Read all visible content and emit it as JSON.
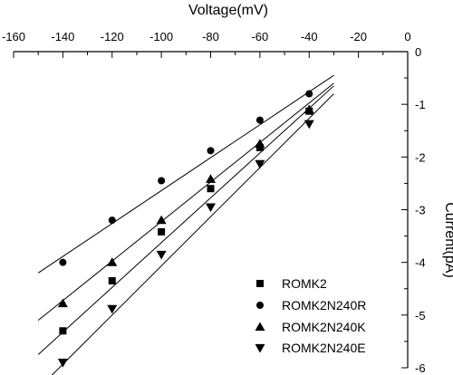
{
  "chart_data": {
    "type": "scatter",
    "title": "",
    "xlabel": "Voltage(mV)",
    "ylabel": "Current(pA)",
    "xlim": [
      -160,
      0
    ],
    "ylim": [
      -6,
      0
    ],
    "x_ticks": [
      -160,
      -140,
      -120,
      -100,
      -80,
      -60,
      -40,
      -20,
      0
    ],
    "y_ticks": [
      0,
      -1,
      -2,
      -3,
      -4,
      -5,
      -6
    ],
    "x_axis_position": "top",
    "y_axis_position": "right",
    "grid": false,
    "legend_position": "bottom-right",
    "series": [
      {
        "name": "ROMK2",
        "marker": "square",
        "x": [
          -140,
          -120,
          -100,
          -80,
          -60,
          -40
        ],
        "y": [
          -5.3,
          -4.35,
          -3.42,
          -2.6,
          -1.82,
          -1.13
        ],
        "fit": {
          "x": [
            -150,
            -30
          ],
          "y": [
            -5.75,
            -0.65
          ]
        }
      },
      {
        "name": "ROMK2N240R",
        "marker": "circle",
        "x": [
          -140,
          -120,
          -100,
          -80,
          -60,
          -40
        ],
        "y": [
          -4.0,
          -3.2,
          -2.45,
          -1.88,
          -1.3,
          -0.8
        ],
        "fit": {
          "x": [
            -150,
            -30
          ],
          "y": [
            -4.2,
            -0.45
          ]
        }
      },
      {
        "name": "ROMK2N240K",
        "marker": "triangle-up",
        "x": [
          -140,
          -120,
          -100,
          -80,
          -60,
          -40
        ],
        "y": [
          -4.78,
          -4.0,
          -3.2,
          -2.42,
          -1.75,
          -1.1
        ],
        "fit": {
          "x": [
            -150,
            -30
          ],
          "y": [
            -5.1,
            -0.6
          ]
        }
      },
      {
        "name": "ROMK2N240E",
        "marker": "triangle-down",
        "x": [
          -140,
          -120,
          -100,
          -80,
          -60,
          -40
        ],
        "y": [
          -5.9,
          -4.88,
          -3.85,
          -2.95,
          -2.13,
          -1.37
        ],
        "fit": {
          "x": [
            -150,
            -30
          ],
          "y": [
            -6.4,
            -0.8
          ]
        }
      }
    ]
  }
}
